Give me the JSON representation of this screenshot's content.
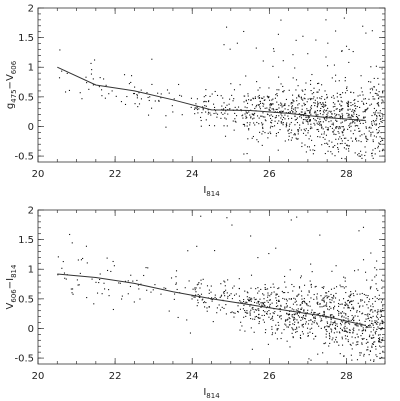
{
  "chart_data": [
    {
      "type": "scatter",
      "xlim": [
        20,
        29
      ],
      "ylim": [
        -0.6,
        2
      ],
      "xticks": [
        "20",
        "22",
        "24",
        "26",
        "28"
      ],
      "yticks": [
        "-0.5",
        "0",
        "0.5",
        "1",
        "1.5",
        "2"
      ],
      "xlabel": {
        "main": "I",
        "sub": "814"
      },
      "ylabel": {
        "a": "g",
        "a_sub": "475",
        "sep": "−V",
        "b_sub": "606"
      },
      "fit_line": {
        "x": [
          20.5,
          21.5,
          22.5,
          23.5,
          24.5,
          25.5,
          26.5,
          27.5,
          28.5
        ],
        "y": [
          1.0,
          0.7,
          0.6,
          0.45,
          0.28,
          0.27,
          0.22,
          0.15,
          0.1
        ]
      },
      "grid": false
    },
    {
      "type": "scatter",
      "xlim": [
        20,
        29
      ],
      "ylim": [
        -0.6,
        2
      ],
      "xticks": [
        "20",
        "22",
        "24",
        "26",
        "28"
      ],
      "yticks": [
        "-0.5",
        "0",
        "0.5",
        "1",
        "1.5",
        "2"
      ],
      "xlabel": {
        "main": "I",
        "sub": "814"
      },
      "ylabel": {
        "a": "V",
        "a_sub": "606",
        "sep": "−I",
        "b_sub": "814"
      },
      "fit_line": {
        "x": [
          20.5,
          21.5,
          22.5,
          23.5,
          24.5,
          25.5,
          26.5,
          27.5,
          28.5
        ],
        "y": [
          0.92,
          0.86,
          0.76,
          0.62,
          0.5,
          0.4,
          0.3,
          0.2,
          0.05
        ]
      },
      "grid": false
    }
  ]
}
